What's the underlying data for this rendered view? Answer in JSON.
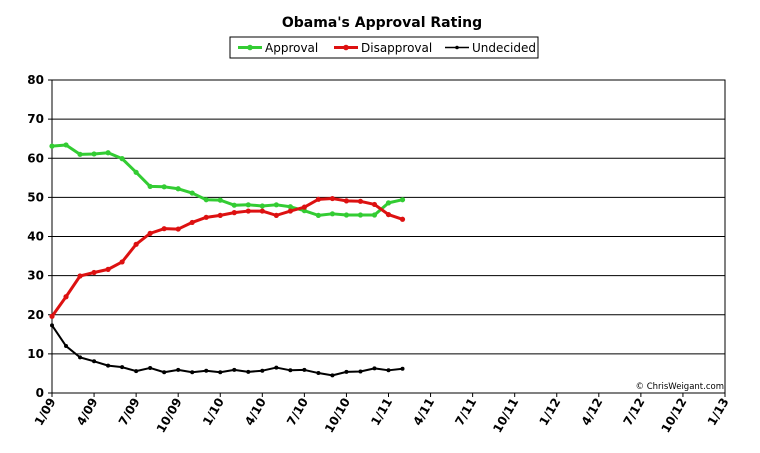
{
  "chart_data": {
    "type": "line",
    "title": "Obama's Approval Rating",
    "xlabel": "",
    "ylabel": "",
    "ylim": [
      0,
      80
    ],
    "y_ticks": [
      "0",
      "10",
      "20",
      "30",
      "40",
      "50",
      "60",
      "70",
      "80"
    ],
    "x_tick_labels": [
      "1/09",
      "4/09",
      "7/09",
      "10/09",
      "1/10",
      "4/10",
      "7/10",
      "10/10",
      "1/11",
      "4/11",
      "7/11",
      "10/11",
      "1/12",
      "4/12",
      "7/12",
      "10/12",
      "1/13"
    ],
    "grid": "horizontal",
    "legend_position": "top-center",
    "credit": "© ChrisWeigant.com",
    "x_unit": "months since 1/09",
    "x": [
      0,
      1,
      2,
      3,
      4,
      5,
      6,
      7,
      8,
      9,
      10,
      11,
      12,
      13,
      14,
      15,
      16,
      17,
      18,
      19,
      20,
      21,
      22,
      23,
      24,
      25
    ],
    "series": [
      {
        "name": "Approval",
        "color": "#33cc33",
        "values": [
          63.1,
          63.4,
          61.0,
          61.1,
          61.4,
          59.9,
          56.4,
          52.8,
          52.7,
          52.2,
          51.1,
          49.4,
          49.3,
          48.0,
          48.1,
          47.8,
          48.1,
          47.6,
          46.6,
          45.4,
          45.8,
          45.5,
          45.5,
          45.5,
          48.6,
          49.4
        ]
      },
      {
        "name": "Disapproval",
        "color": "#dd1111",
        "values": [
          19.6,
          24.6,
          29.9,
          30.8,
          31.6,
          33.5,
          38.0,
          40.8,
          42.0,
          41.9,
          43.6,
          44.9,
          45.4,
          46.1,
          46.5,
          46.5,
          45.4,
          46.5,
          47.5,
          49.5,
          49.7,
          49.1,
          49.0,
          48.2,
          45.6,
          44.4
        ]
      },
      {
        "name": "Undecided",
        "color": "#000000",
        "values": [
          17.3,
          12.0,
          9.1,
          8.1,
          7.0,
          6.6,
          5.6,
          6.4,
          5.3,
          5.9,
          5.3,
          5.7,
          5.3,
          5.9,
          5.4,
          5.7,
          6.5,
          5.8,
          5.9,
          5.1,
          4.5,
          5.4,
          5.5,
          6.3,
          5.8,
          6.2
        ]
      }
    ]
  }
}
